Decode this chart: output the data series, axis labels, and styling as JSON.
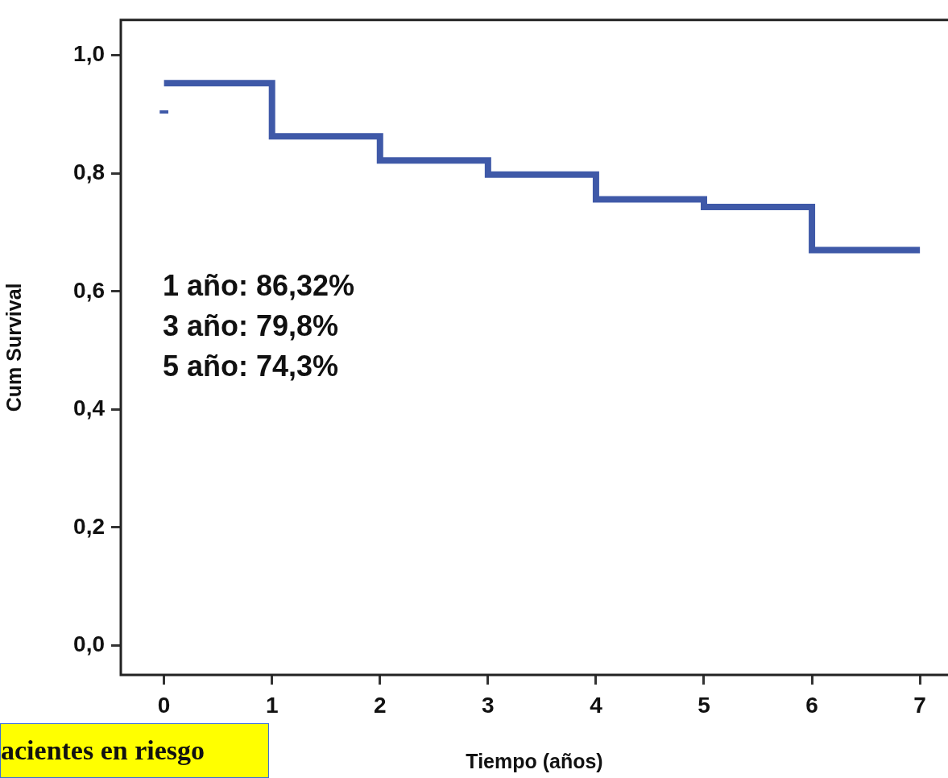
{
  "chart_data": {
    "type": "step",
    "xlabel": "Tiempo (años)",
    "ylabel": "Cum Survival",
    "annotations": [
      "1 año: 86,32%",
      "3 año: 79,8%",
      "5 año: 74,3%",
      "acientes en riesgo"
    ],
    "series": [
      {
        "color": "#3f59a8",
        "x": [
          0,
          1,
          2,
          3,
          4,
          5,
          6,
          7
        ],
        "values": [
          0.953,
          0.863,
          0.822,
          0.798,
          0.756,
          0.743,
          0.67,
          0.67
        ]
      },
      {
        "type": "line",
        "color": "#3f59a8",
        "x": [
          -0.04,
          0.04
        ],
        "values": [
          0.904,
          0.904
        ]
      }
    ],
    "xlim": [
      -0.4,
      7.26
    ],
    "xticks": [
      0,
      1,
      2,
      3,
      4,
      5,
      6,
      7
    ],
    "ylim": [
      -0.05,
      1.06
    ],
    "yticks": [
      {
        "value": 0,
        "label": "0,0"
      },
      {
        "value": 0.2,
        "label": "0,2"
      },
      {
        "value": 0.4,
        "label": "0,4"
      },
      {
        "value": 0.6,
        "label": "0,6"
      },
      {
        "value": 0.8,
        "label": "0,8"
      },
      {
        "value": 1,
        "label": "1,0"
      }
    ],
    "grid": false,
    "legend": false,
    "marker": "none",
    "line_style": "solid"
  }
}
